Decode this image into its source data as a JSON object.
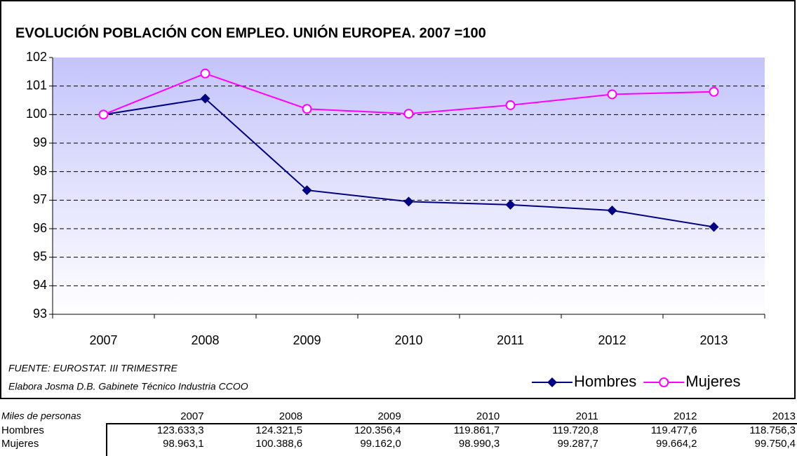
{
  "chart_data": {
    "type": "line",
    "title": "EVOLUCIÓN POBLACIÓN CON EMPLEO. UNIÓN EUROPEA. 2007 =100",
    "categories": [
      "2007",
      "2008",
      "2009",
      "2010",
      "2011",
      "2012",
      "2013"
    ],
    "series": [
      {
        "name": "Hombres",
        "color": "#000080",
        "marker": "diamond",
        "values": [
          100,
          100.56,
          97.35,
          96.95,
          96.84,
          96.64,
          96.06
        ]
      },
      {
        "name": "Mujeres",
        "color": "#ff00ff",
        "marker": "circle",
        "values": [
          100,
          101.44,
          100.2,
          100.03,
          100.33,
          100.71,
          100.8
        ]
      }
    ],
    "ylim": [
      93,
      102
    ],
    "yticks": [
      93,
      94,
      95,
      96,
      97,
      98,
      99,
      100,
      101,
      102
    ],
    "grid": true,
    "legend": "lower right",
    "notes": [
      "FUENTE: EUROSTAT. III TRIMESTRE",
      "Elabora Josma D.B. Gabinete Técnico Industria CCOO"
    ]
  },
  "table": {
    "header": "Miles de personas",
    "columns": [
      "2007",
      "2008",
      "2009",
      "2010",
      "2011",
      "2012",
      "2013"
    ],
    "rows": [
      [
        "Hombres",
        "123.633,3",
        "124.321,5",
        "120.356,4",
        "119.861,7",
        "119.720,8",
        "119.477,6",
        "118.756,3"
      ],
      [
        "Mujeres",
        "98.963,1",
        "100.388,6",
        "99.162,0",
        "98.990,3",
        "99.287,7",
        "99.664,2",
        "99.750,4"
      ]
    ]
  }
}
